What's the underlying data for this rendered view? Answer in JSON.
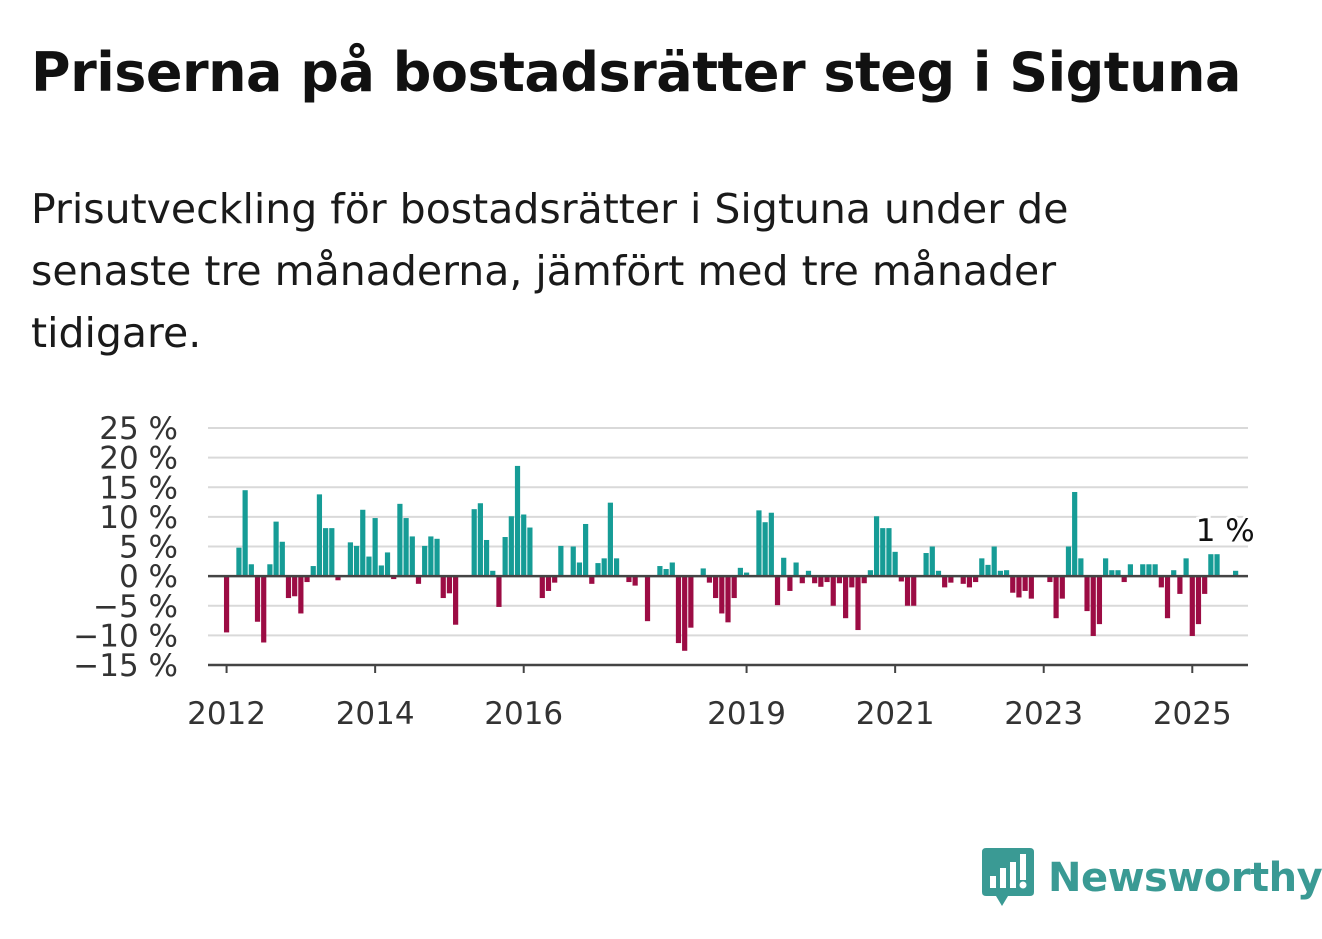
{
  "title": "Priserna på bostadsrätter steg i Sigtuna",
  "subtitle": "Prisutveckling för bostadsrätter i Sigtuna under de senaste tre månaderna, jämfört med tre månader tidigare.",
  "brand": {
    "name": "Newsworthy",
    "icon": "newsworthy-logo-icon",
    "color": "#3a9a94"
  },
  "colors": {
    "positive": "#169c96",
    "negative": "#9c0c44",
    "grid": "#d9d9d9",
    "axis": "#444444"
  },
  "chart_data": {
    "type": "bar",
    "title": "Priserna på bostadsrätter steg i Sigtuna",
    "xlabel": "",
    "ylabel": "",
    "ylim": [
      -15,
      25
    ],
    "grid": true,
    "y_ticks": [
      25,
      20,
      15,
      10,
      5,
      0,
      -5,
      -10,
      -15
    ],
    "y_tick_labels": [
      "25 %",
      "20 %",
      "15 %",
      "10 %",
      "5 %",
      "0 %",
      "−5 %",
      "−10 %",
      "−15 %"
    ],
    "x_ticks": [
      2012,
      2014,
      2016,
      2019,
      2021,
      2023,
      2025
    ],
    "x_tick_labels": [
      "2012",
      "2014",
      "2016",
      "2019",
      "2021",
      "2023",
      "2025"
    ],
    "x_range": [
      "2011-10",
      "2025-10"
    ],
    "start": "2012-01",
    "unit": "%",
    "annotation": {
      "text": "1 %",
      "date": "2025-06",
      "value": 1
    },
    "values": [
      -9.5,
      0,
      4.8,
      14.5,
      2,
      -7.7,
      -11.2,
      2,
      9.2,
      5.8,
      -3.7,
      -3.4,
      -6.3,
      -1,
      1.7,
      13.8,
      8.1,
      8.1,
      -0.7,
      0,
      5.7,
      5.1,
      11.2,
      3.3,
      9.8,
      1.8,
      4,
      -0.5,
      12.2,
      9.8,
      6.7,
      -1.3,
      5.1,
      6.7,
      6.3,
      -3.7,
      -2.9,
      -8.2,
      0,
      0,
      11.3,
      12.3,
      6.1,
      0.9,
      -5.2,
      6.6,
      10.1,
      18.6,
      10.4,
      8.2,
      0,
      -3.7,
      -2.5,
      -1.1,
      5.1,
      0,
      5,
      2.3,
      8.8,
      -1.3,
      2.2,
      3,
      12.4,
      3,
      0,
      -1,
      -1.6,
      0,
      -7.6,
      0,
      1.7,
      1.2,
      2.3,
      -11.3,
      -12.6,
      -8.7,
      0,
      1.3,
      -1.1,
      -3.7,
      -6.3,
      -7.8,
      -3.7,
      1.4,
      0.6,
      0,
      11.1,
      9.1,
      10.7,
      -4.9,
      3.1,
      -2.5,
      2.3,
      -1.2,
      0.9,
      -1.2,
      -1.8,
      -1,
      -5,
      -1.2,
      -7.1,
      -1.9,
      -9.1,
      -1.2,
      1,
      10.1,
      8.1,
      8.1,
      4.1,
      -0.9,
      -5,
      -5,
      0,
      3.9,
      5,
      0.9,
      -1.9,
      -1.1,
      0,
      -1.3,
      -1.9,
      -1,
      3,
      1.9,
      5,
      0.9,
      1,
      -2.8,
      -3.6,
      -2.5,
      -3.8,
      0,
      0,
      -1,
      -7.1,
      -3.8,
      5,
      14.2,
      3,
      -5.9,
      -10.1,
      -8.1,
      3,
      1,
      1,
      -1,
      2,
      0,
      2,
      2,
      2,
      -1.9,
      -7.1,
      1,
      -3,
      3,
      -10.1,
      -8.1,
      -3,
      3.7,
      3.7,
      0,
      0,
      0.9
    ]
  }
}
